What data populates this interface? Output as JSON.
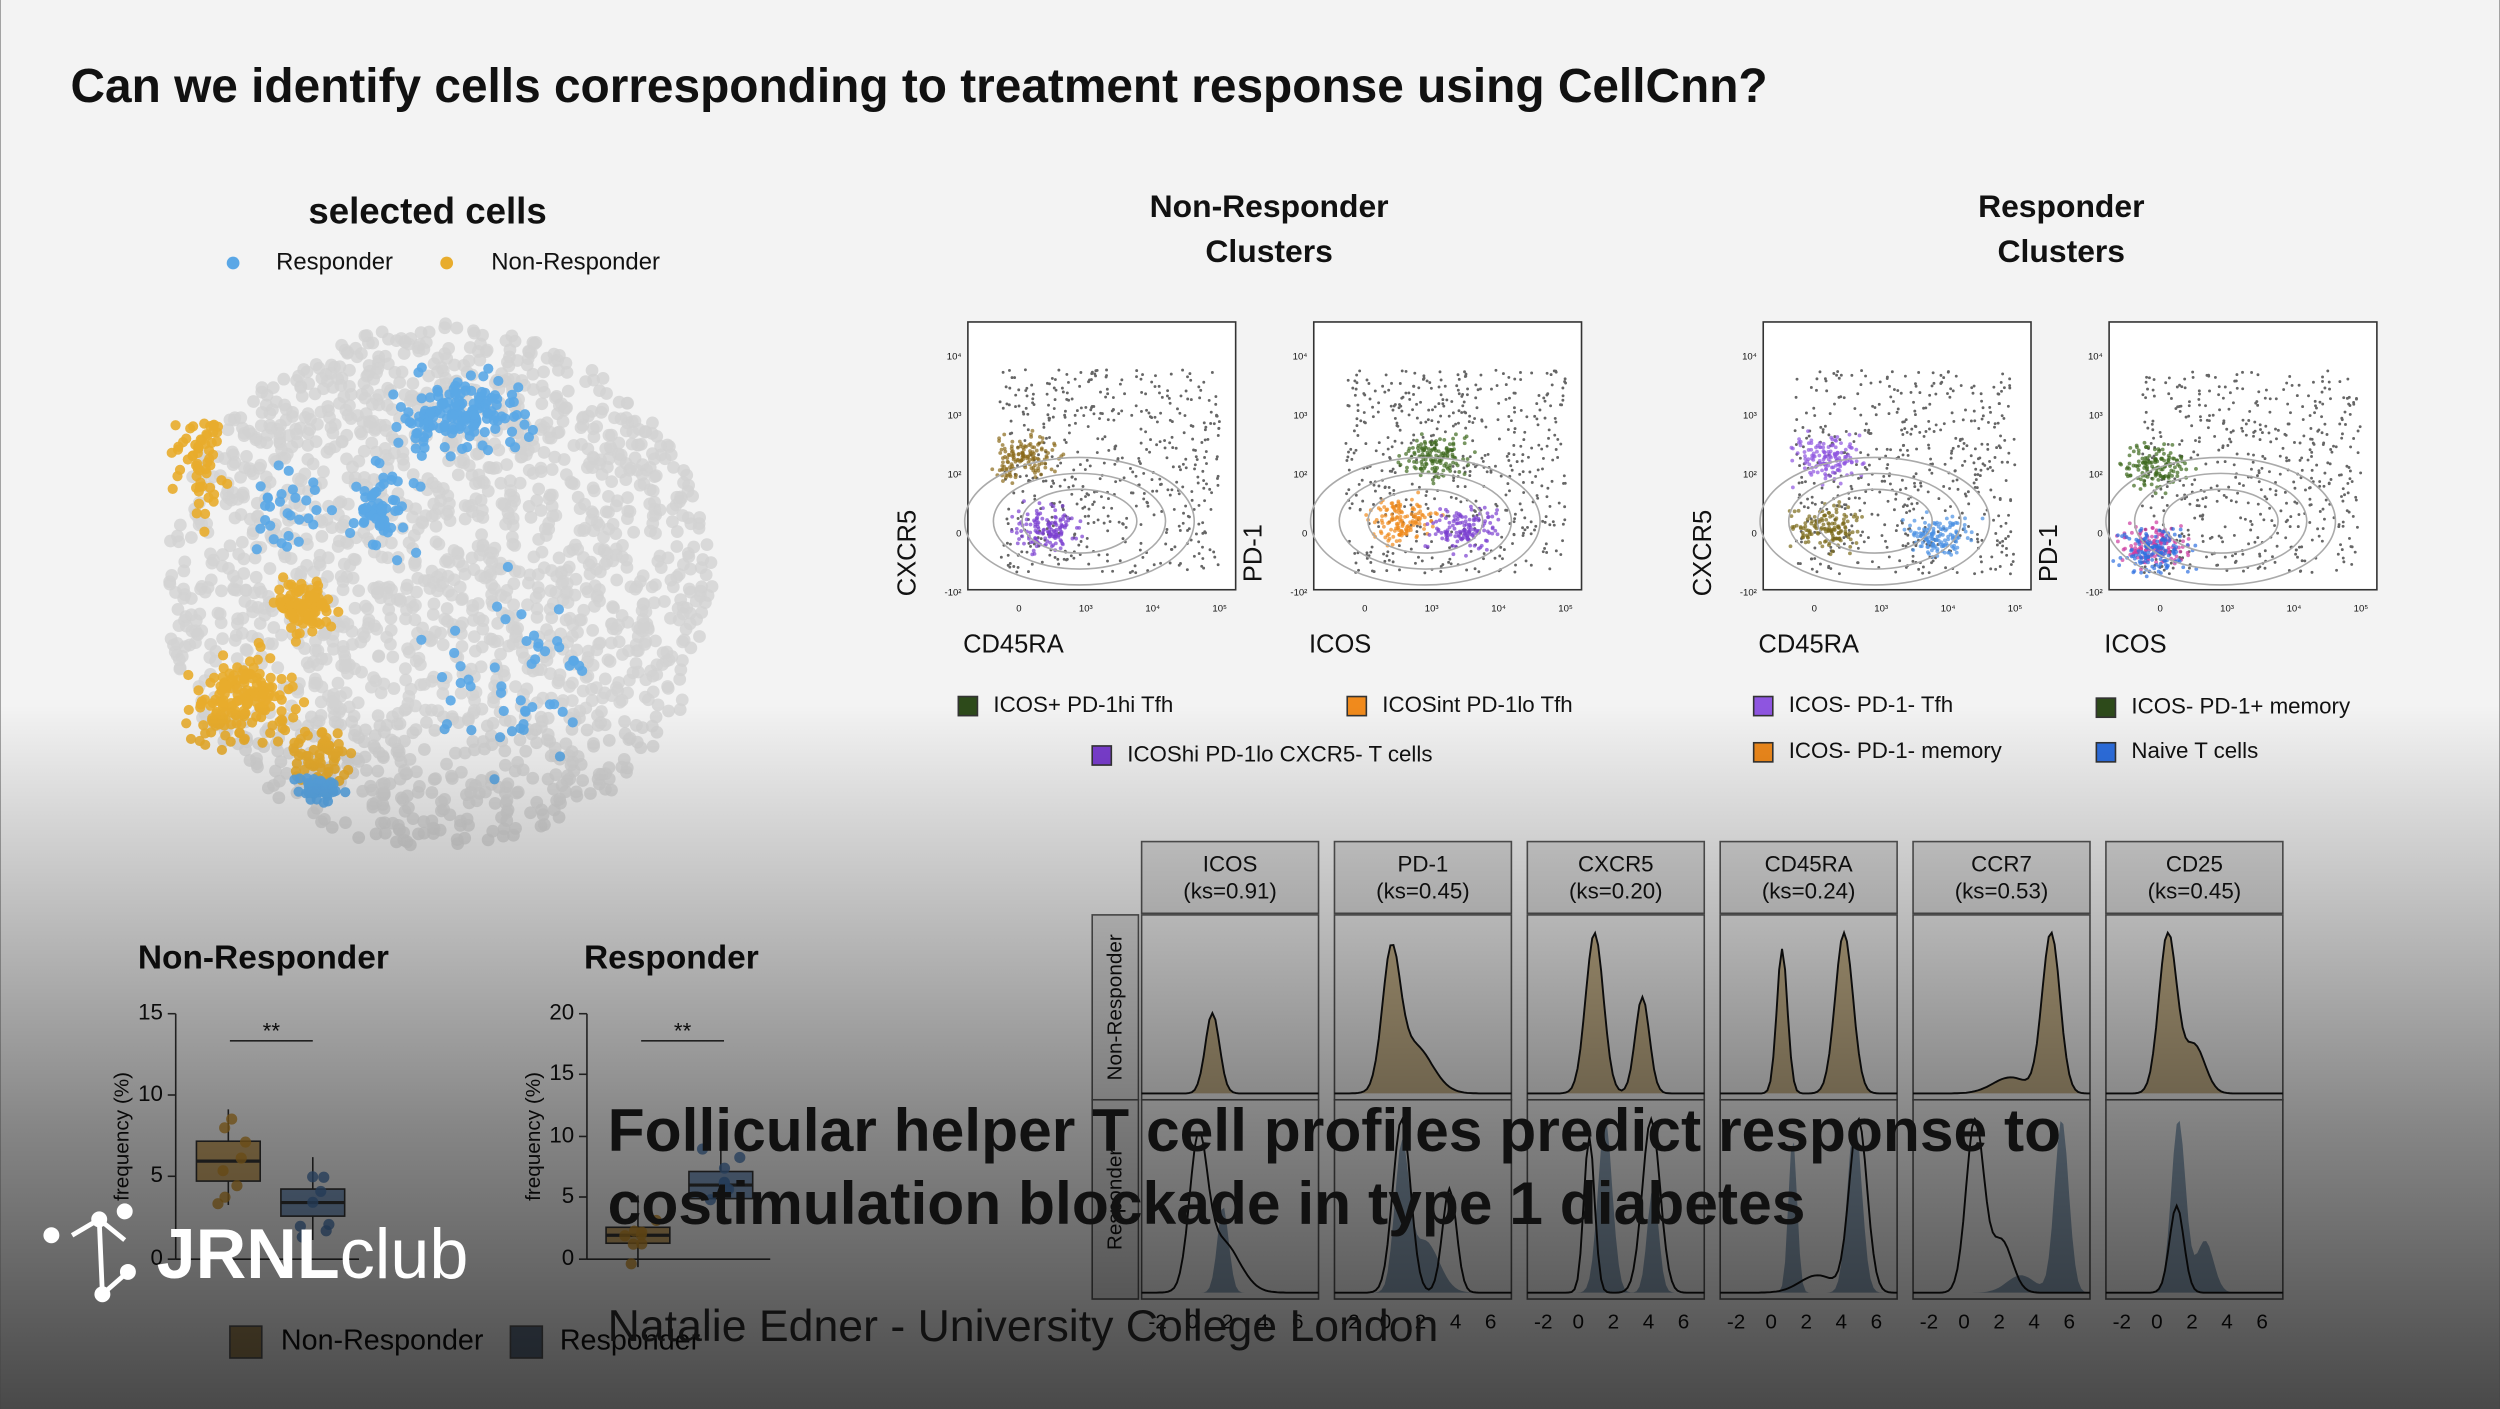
{
  "title": "Can we identify cells corresponding to treatment response using CellCnn?",
  "umap": {
    "title": "selected cells",
    "legend": [
      "Responder",
      "Non-Responder"
    ]
  },
  "flow_ticks": {
    "y": [
      "10⁴",
      "10³",
      "10²",
      "0",
      "-10²"
    ],
    "x": [
      "0",
      "10³",
      "10⁴",
      "10⁵"
    ]
  },
  "non_responder_clusters": {
    "title": [
      "Non-Responder",
      "Clusters"
    ],
    "x_labels": [
      "CD45RA",
      "ICOS"
    ],
    "y_labels": [
      "CXCR5",
      "PD-1"
    ],
    "legend": [
      "ICOS+ PD-1hi Tfh",
      "ICOSint PD-1lo Tfh",
      "ICOShi PD-1lo CXCR5- T cells"
    ]
  },
  "responder_clusters": {
    "title": [
      "Responder",
      "Clusters"
    ],
    "x_labels": [
      "CD45RA",
      "ICOS"
    ],
    "y_labels": [
      "CXCR5",
      "PD-1"
    ],
    "legend": [
      "ICOS- PD-1- Tfh",
      "ICOS- PD-1+ memory",
      "ICOS- PD-1- memory",
      "Naive T cells"
    ]
  },
  "boxplots": [
    {
      "title": "Non-Responder",
      "y_label": "frequency (%)",
      "yticks": [
        "15",
        "10",
        "5",
        "0"
      ],
      "significance": "**"
    },
    {
      "title": "Responder",
      "y_label": "frequency (%)",
      "yticks": [
        "20",
        "15",
        "10",
        "5",
        "0"
      ],
      "significance": "**"
    }
  ],
  "boxplot_legend": [
    "Non-Responder",
    "Responder"
  ],
  "density": {
    "panels": [
      {
        "marker": "ICOS",
        "ks": "(ks=0.91)"
      },
      {
        "marker": "PD-1",
        "ks": "(ks=0.45)"
      },
      {
        "marker": "CXCR5",
        "ks": "(ks=0.20)"
      },
      {
        "marker": "CD45RA",
        "ks": "(ks=0.24)"
      },
      {
        "marker": "CCR7",
        "ks": "(ks=0.53)"
      },
      {
        "marker": "CD25",
        "ks": "(ks=0.45)"
      }
    ],
    "row_labels": [
      "Non-Responder",
      "Responder"
    ],
    "xticks": [
      "-2",
      "0",
      "2",
      "4",
      "6"
    ]
  },
  "overlay": {
    "brand": [
      "JRNL",
      "club"
    ],
    "headline": [
      "Follicular helper T cell profiles predict response to",
      "costimulation blockade in type 1 diabetes"
    ],
    "author": "Natalie Edner - University College London"
  }
}
